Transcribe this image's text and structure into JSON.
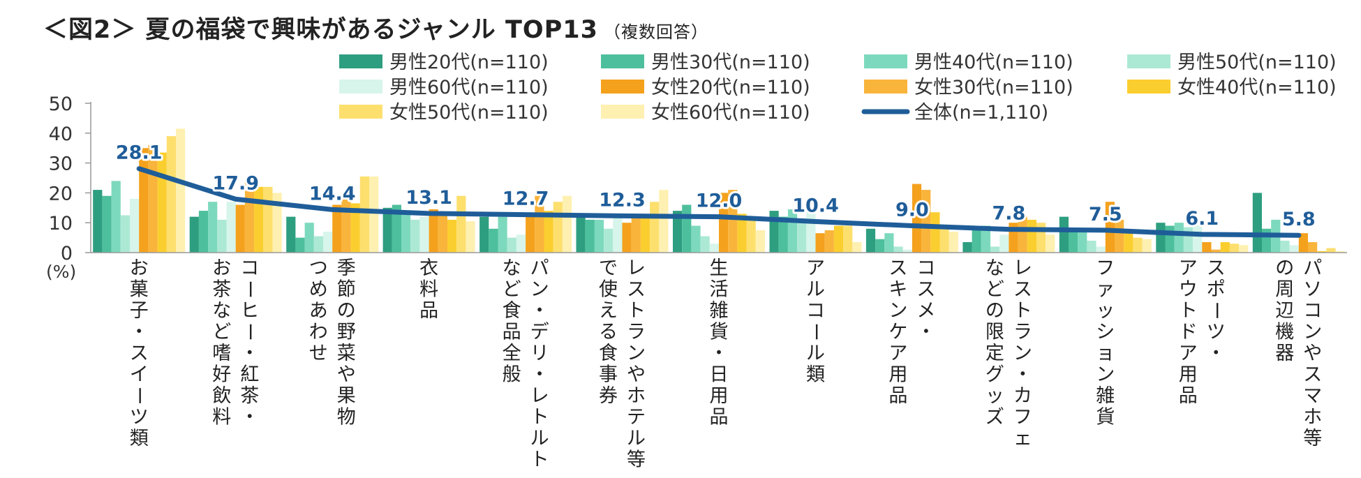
{
  "title": "＜図2＞ 夏の福袋で興味があるジャンル TOP13",
  "subtitle": "（複数回答）",
  "chart_data": {
    "type": "bar",
    "ylabel": "(%)",
    "ylim": [
      0,
      50
    ],
    "yticks": [
      0,
      10,
      20,
      30,
      40,
      50
    ],
    "categories": [
      [
        "お菓子・スイーツ類"
      ],
      [
        "コーヒー・紅茶・",
        "お茶など嗜好飲料"
      ],
      [
        "季節の野菜や果物",
        "つめあわせ"
      ],
      [
        "衣料品"
      ],
      [
        "パン・デリ・レトルト",
        "など食品全般"
      ],
      [
        "レストランやホテル等",
        "で使える食事券"
      ],
      [
        "生活雑貨・日用品"
      ],
      [
        "アルコール類"
      ],
      [
        "コスメ・",
        "スキンケア用品"
      ],
      [
        "レストラン・カフェ",
        "などの限定グッズ"
      ],
      [
        "ファッション雑貨"
      ],
      [
        "スポーツ・",
        "アウトドア用品"
      ],
      [
        "パソコンやスマホ等",
        "の周辺機器"
      ]
    ],
    "series": [
      {
        "name": "男性20代(n=110)",
        "color": "#2e9e80",
        "values": [
          21,
          12,
          12,
          15,
          12,
          12,
          14,
          14,
          8,
          3.5,
          12,
          10,
          20
        ]
      },
      {
        "name": "男性30代(n=110)",
        "color": "#4dbf9c",
        "values": [
          19,
          14,
          5,
          16,
          8,
          11,
          16,
          12,
          4.5,
          8,
          7,
          9,
          8
        ]
      },
      {
        "name": "男性40代(n=110)",
        "color": "#7dd9bd",
        "values": [
          24,
          17,
          10,
          13,
          12,
          11,
          9,
          14.5,
          6.5,
          9,
          7,
          10,
          11
        ]
      },
      {
        "name": "男性50代(n=110)",
        "color": "#ace9d5",
        "values": [
          12.5,
          11,
          5.5,
          11,
          5,
          8,
          5.5,
          11.5,
          2,
          2,
          4,
          8.5,
          4
        ]
      },
      {
        "name": "男性60代(n=110)",
        "color": "#d7f5ea",
        "values": [
          18,
          17,
          7,
          12,
          6,
          12,
          3,
          14.5,
          1,
          6,
          2,
          10,
          2.5
        ]
      },
      {
        "name": "女性20代(n=110)",
        "color": "#f4a11d",
        "values": [
          35,
          16,
          16,
          14.5,
          13,
          10,
          20,
          6.5,
          23,
          10,
          17,
          3.5,
          6.5
        ]
      },
      {
        "name": "女性30代(n=110)",
        "color": "#f9b43c",
        "values": [
          36,
          24,
          20,
          13,
          19,
          11.5,
          21,
          7.5,
          21,
          12,
          11,
          1,
          3.5
        ]
      },
      {
        "name": "女性40代(n=110)",
        "color": "#fbce2f",
        "values": [
          33.5,
          22,
          16.5,
          11,
          14,
          12,
          13,
          9,
          13.5,
          11,
          7,
          3.5,
          0.5
        ]
      },
      {
        "name": "女性50代(n=110)",
        "color": "#fddf6e",
        "values": [
          39,
          22,
          25.5,
          19,
          17,
          17,
          11.5,
          9,
          8,
          10,
          5,
          3,
          1.5
        ]
      },
      {
        "name": "女性60代(n=110)",
        "color": "#fef0b0",
        "values": [
          41.5,
          20,
          25.5,
          10.5,
          19,
          21,
          7.5,
          3.5,
          7,
          6,
          4.5,
          2.5,
          0.5
        ]
      }
    ],
    "line": {
      "name": "全体(n=1,110)",
      "color": "#1f5d99",
      "values": [
        28.1,
        17.9,
        14.4,
        13.1,
        12.7,
        12.3,
        12.0,
        10.4,
        9.0,
        7.8,
        7.5,
        6.1,
        5.8
      ],
      "labels": [
        "28.1",
        "17.9",
        "14.4",
        "13.1",
        "12.7",
        "12.3",
        "12.0",
        "10.4",
        "9.0",
        "7.8",
        "7.5",
        "6.1",
        "5.8"
      ]
    }
  }
}
